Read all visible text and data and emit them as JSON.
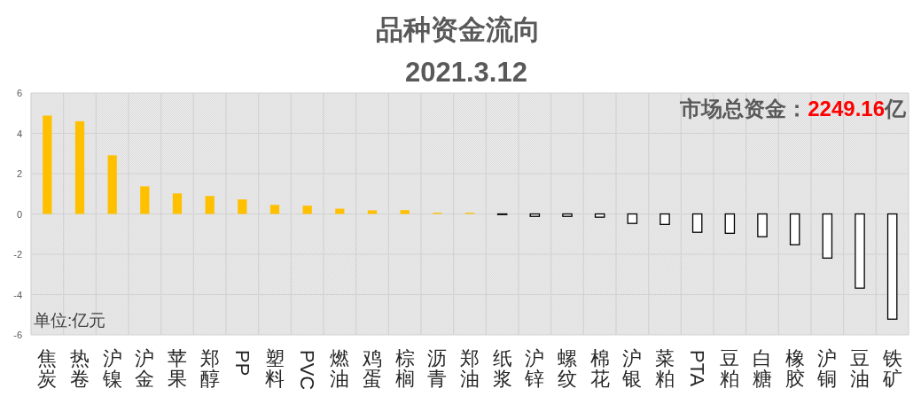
{
  "chart_data": {
    "type": "bar",
    "title": "品种资金流向",
    "subtitle": "2021.3.12",
    "categories": [
      "焦炭",
      "热卷",
      "沪镍",
      "沪金",
      "苹果",
      "郑醇",
      "PP",
      "塑料",
      "PVC",
      "燃油",
      "鸡蛋",
      "棕榈",
      "沥青",
      "郑油",
      "纸浆",
      "沪锌",
      "螺纹",
      "棉花",
      "沪银",
      "菜粕",
      "PTA",
      "豆粕",
      "白糖",
      "橡胶",
      "沪铜",
      "豆油",
      "铁矿"
    ],
    "values": [
      4.88,
      4.6,
      2.91,
      1.37,
      1.02,
      0.89,
      0.72,
      0.45,
      0.41,
      0.26,
      0.18,
      0.19,
      0.06,
      0.06,
      -0.03,
      -0.12,
      -0.12,
      -0.16,
      -0.47,
      -0.52,
      -0.91,
      -0.96,
      -1.13,
      -1.53,
      -2.19,
      -3.68,
      -5.22
    ],
    "colors": [
      "#ffc000",
      "#ffc000",
      "#ffc000",
      "#ffc000",
      "#ffc000",
      "#ffc000",
      "#ffc000",
      "#ffc000",
      "#ffc000",
      "#ffc000",
      "#ffc000",
      "#ffc000",
      "#ffc000",
      "#ffc000",
      "#ffffff",
      "#ffffff",
      "#ffffff",
      "#ffffff",
      "#ffffff",
      "#ffffff",
      "#ffffff",
      "#ffffff",
      "#ffffff",
      "#ffffff",
      "#ffffff",
      "#ffffff",
      "#ffffff"
    ],
    "ylim": [
      -6,
      6
    ],
    "yticks": [
      -6,
      -4,
      -2,
      0,
      2,
      4,
      6
    ],
    "grid": true,
    "annotations": [
      "市场总资金：2249.16亿",
      "单位:亿元"
    ]
  }
}
